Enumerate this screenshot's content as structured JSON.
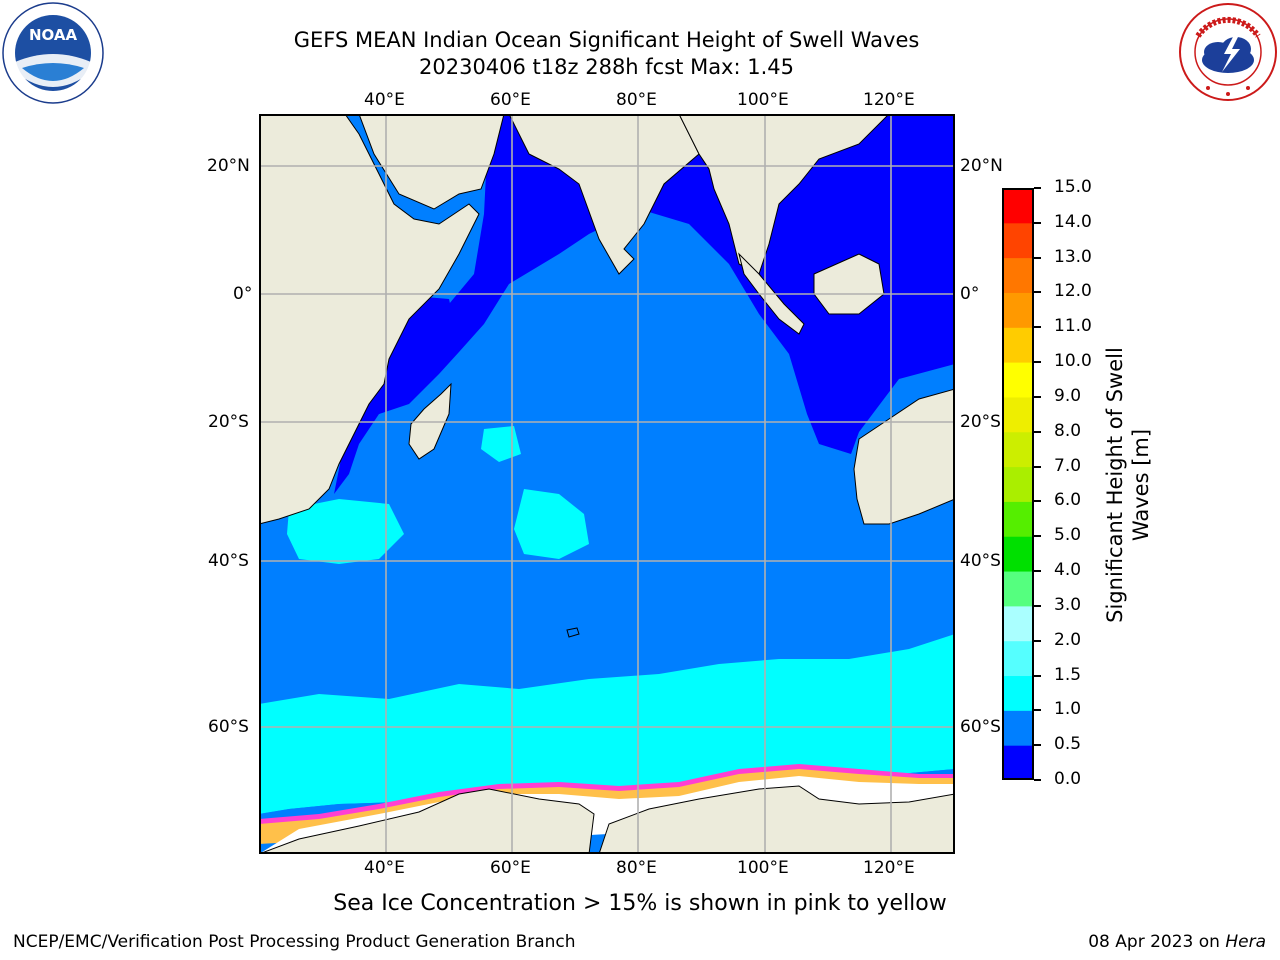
{
  "header": {
    "title_line1": "GEFS MEAN Indian Ocean Significant Height of Swell Waves",
    "title_line2": "20230406 t18z 288h fcst   Max: 1.45"
  },
  "logos": {
    "noaa_text": "NOAA",
    "noaa_ring_text": "NATIONAL OCEANIC AND ATMOSPHERIC ADMINISTRATION · U.S. DEPARTMENT OF COMMERCE",
    "nws_ring_text": "NATIONAL WEATHER SERVICE"
  },
  "map": {
    "lon_labels": [
      "40°E",
      "60°E",
      "80°E",
      "100°E",
      "120°E"
    ],
    "lat_labels": [
      "20°N",
      "0°",
      "20°S",
      "40°S",
      "60°S"
    ],
    "colors": {
      "land": "#ecebdb",
      "ocean_low": "#0000ff",
      "ocean_mid": "#007fff",
      "ocean_high": "#00ffff",
      "ice_pink": "#ff3fd2",
      "ice_yellow": "#ffc04a",
      "grid": "#b0b0b0"
    }
  },
  "colorbar": {
    "label_line1": "Significant Height of Swell",
    "label_line2": "Waves [m]",
    "ticks": [
      "0.0",
      "0.5",
      "1.0",
      "1.5",
      "2.0",
      "3.0",
      "4.0",
      "5.0",
      "6.0",
      "7.0",
      "8.0",
      "9.0",
      "10.0",
      "11.0",
      "12.0",
      "13.0",
      "14.0",
      "15.0"
    ],
    "colors": [
      "#0000ff",
      "#007fff",
      "#00ffff",
      "#55ffff",
      "#aaffff",
      "#55ff7f",
      "#00e000",
      "#55ee00",
      "#aaee00",
      "#ccee00",
      "#eeee00",
      "#ffff00",
      "#ffcc00",
      "#ff9900",
      "#ff7700",
      "#ff4400",
      "#ff0000"
    ]
  },
  "note": "Sea Ice Concentration > 15% is shown in pink to yellow",
  "footer": {
    "left": "NCEP/EMC/Verification Post Processing Product Generation Branch",
    "date": "08 Apr 2023 on ",
    "machine": "Hera"
  }
}
